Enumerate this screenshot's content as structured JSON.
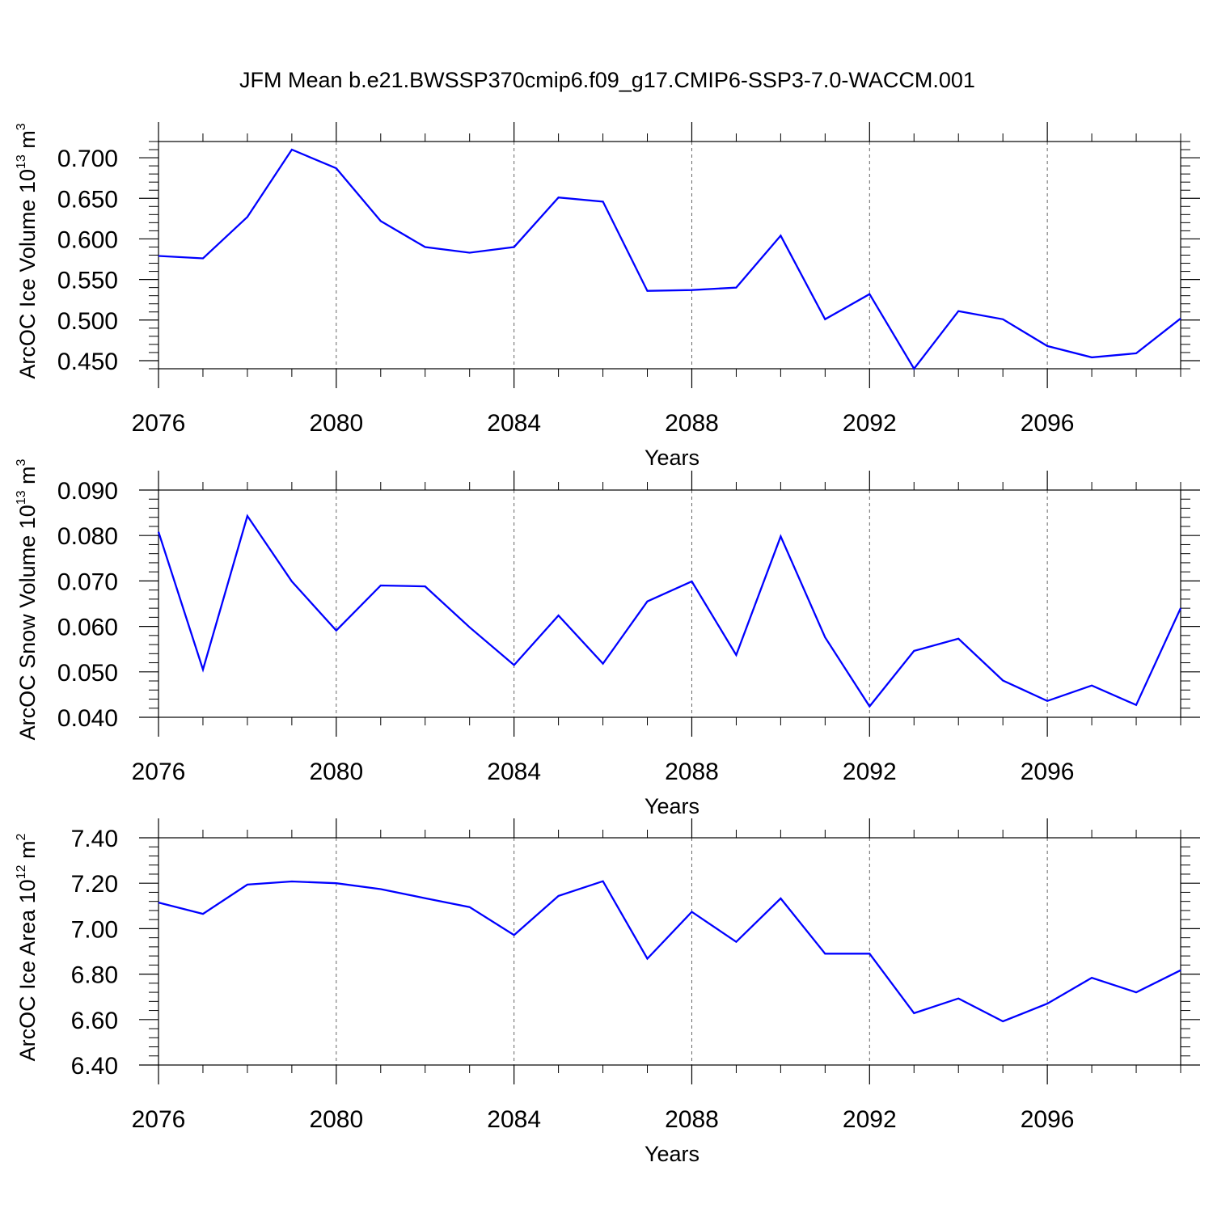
{
  "figure_title": "JFM Mean b.e21.BWSSP370cmip6.f09_g17.CMIP6-SSP3-7.0-WACCM.001",
  "colors": {
    "series": "#0000ff",
    "axes": "#000000",
    "grid": "#666666"
  },
  "chart_data": [
    {
      "type": "line",
      "ylabel": "ArcOC Ice Volume 10",
      "ylabel_exp": "13",
      "ylabel_unit": " m",
      "ylabel_unit_exp": "3",
      "xlabel": "Years",
      "xlim": [
        2076,
        2099
      ],
      "ylim": [
        0.44,
        0.72
      ],
      "grid": "vertical dashed",
      "xticks": [
        {
          "value": 2076,
          "label": "2076"
        },
        {
          "value": 2080,
          "label": "2080"
        },
        {
          "value": 2084,
          "label": "2084"
        },
        {
          "value": 2088,
          "label": "2088"
        },
        {
          "value": 2092,
          "label": "2092"
        },
        {
          "value": 2096,
          "label": "2096"
        }
      ],
      "yticks": [
        {
          "value": 0.45,
          "label": "0.450"
        },
        {
          "value": 0.5,
          "label": "0.500"
        },
        {
          "value": 0.55,
          "label": "0.550"
        },
        {
          "value": 0.6,
          "label": "0.600"
        },
        {
          "value": 0.65,
          "label": "0.650"
        },
        {
          "value": 0.7,
          "label": "0.700"
        }
      ],
      "yminor_step": 0.01,
      "series": [
        {
          "name": "ArcOC Ice Volume",
          "x": [
            2076,
            2077,
            2078,
            2079,
            2080,
            2081,
            2082,
            2083,
            2084,
            2085,
            2086,
            2087,
            2088,
            2089,
            2090,
            2091,
            2092,
            2093,
            2094,
            2095,
            2096,
            2097,
            2098,
            2099
          ],
          "values": [
            0.579,
            0.576,
            0.627,
            0.71,
            0.687,
            0.622,
            0.59,
            0.583,
            0.59,
            0.651,
            0.646,
            0.536,
            0.537,
            0.54,
            0.604,
            0.501,
            0.532,
            0.44,
            0.511,
            0.501,
            0.468,
            0.454,
            0.459,
            0.502
          ]
        }
      ]
    },
    {
      "type": "line",
      "ylabel": "ArcOC Snow Volume 10",
      "ylabel_exp": "13",
      "ylabel_unit": " m",
      "ylabel_unit_exp": "3",
      "xlabel": "Years",
      "xlim": [
        2076,
        2099
      ],
      "ylim": [
        0.04,
        0.09
      ],
      "grid": "vertical dashed",
      "xticks": [
        {
          "value": 2076,
          "label": "2076"
        },
        {
          "value": 2080,
          "label": "2080"
        },
        {
          "value": 2084,
          "label": "2084"
        },
        {
          "value": 2088,
          "label": "2088"
        },
        {
          "value": 2092,
          "label": "2092"
        },
        {
          "value": 2096,
          "label": "2096"
        }
      ],
      "yticks": [
        {
          "value": 0.04,
          "label": "0.040"
        },
        {
          "value": 0.05,
          "label": "0.050"
        },
        {
          "value": 0.06,
          "label": "0.060"
        },
        {
          "value": 0.07,
          "label": "0.070"
        },
        {
          "value": 0.08,
          "label": "0.080"
        },
        {
          "value": 0.09,
          "label": "0.090"
        }
      ],
      "yminor_step": 0.002,
      "series": [
        {
          "name": "ArcOC Snow Volume",
          "x": [
            2076,
            2077,
            2078,
            2079,
            2080,
            2081,
            2082,
            2083,
            2084,
            2085,
            2086,
            2087,
            2088,
            2089,
            2090,
            2091,
            2092,
            2093,
            2094,
            2095,
            2096,
            2097,
            2098,
            2099
          ],
          "values": [
            0.0808,
            0.0505,
            0.0843,
            0.0699,
            0.0591,
            0.069,
            0.0688,
            0.0598,
            0.0515,
            0.0624,
            0.0518,
            0.0655,
            0.0699,
            0.0537,
            0.0798,
            0.0576,
            0.0424,
            0.0546,
            0.0573,
            0.0481,
            0.0436,
            0.047,
            0.0427,
            0.064
          ]
        }
      ]
    },
    {
      "type": "line",
      "ylabel": "ArcOC Ice Area 10",
      "ylabel_exp": "12",
      "ylabel_unit": " m",
      "ylabel_unit_exp": "2",
      "xlabel": "Years",
      "xlim": [
        2076,
        2099
      ],
      "ylim": [
        6.4,
        7.4
      ],
      "grid": "vertical dashed",
      "xticks": [
        {
          "value": 2076,
          "label": "2076"
        },
        {
          "value": 2080,
          "label": "2080"
        },
        {
          "value": 2084,
          "label": "2084"
        },
        {
          "value": 2088,
          "label": "2088"
        },
        {
          "value": 2092,
          "label": "2092"
        },
        {
          "value": 2096,
          "label": "2096"
        }
      ],
      "yticks": [
        {
          "value": 6.4,
          "label": "6.40"
        },
        {
          "value": 6.6,
          "label": "6.60"
        },
        {
          "value": 6.8,
          "label": "6.80"
        },
        {
          "value": 7.0,
          "label": "7.00"
        },
        {
          "value": 7.2,
          "label": "7.20"
        },
        {
          "value": 7.4,
          "label": "7.40"
        }
      ],
      "yminor_step": 0.04,
      "series": [
        {
          "name": "ArcOC Ice Area",
          "x": [
            2076,
            2077,
            2078,
            2079,
            2080,
            2081,
            2082,
            2083,
            2084,
            2085,
            2086,
            2087,
            2088,
            2089,
            2090,
            2091,
            2092,
            2093,
            2094,
            2095,
            2096,
            2097,
            2098,
            2099
          ],
          "values": [
            7.115,
            7.065,
            7.194,
            7.208,
            7.2,
            7.174,
            7.134,
            7.095,
            6.972,
            7.144,
            7.209,
            6.868,
            7.074,
            6.942,
            7.133,
            6.89,
            6.89,
            6.628,
            6.693,
            6.592,
            6.67,
            6.784,
            6.72,
            6.817
          ]
        }
      ]
    }
  ]
}
